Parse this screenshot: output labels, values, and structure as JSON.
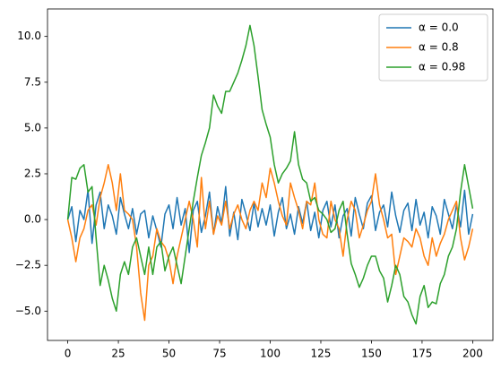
{
  "chart_data": {
    "type": "line",
    "x": [
      0,
      2,
      4,
      6,
      8,
      10,
      12,
      14,
      16,
      18,
      20,
      22,
      24,
      26,
      28,
      30,
      32,
      34,
      36,
      38,
      40,
      42,
      44,
      46,
      48,
      50,
      52,
      54,
      56,
      58,
      60,
      62,
      64,
      66,
      68,
      70,
      72,
      74,
      76,
      78,
      80,
      82,
      84,
      86,
      88,
      90,
      92,
      94,
      96,
      98,
      100,
      102,
      104,
      106,
      108,
      110,
      112,
      114,
      116,
      118,
      120,
      122,
      124,
      126,
      128,
      130,
      132,
      134,
      136,
      138,
      140,
      142,
      144,
      146,
      148,
      150,
      152,
      154,
      156,
      158,
      160,
      162,
      164,
      166,
      168,
      170,
      172,
      174,
      176,
      178,
      180,
      182,
      184,
      186,
      188,
      190,
      192,
      194,
      196,
      198,
      200
    ],
    "series": [
      {
        "name": "α = 0.0",
        "color": "#1f77b4",
        "values": [
          0,
          0.7,
          -1.2,
          0.5,
          0,
          1.6,
          -1.3,
          0.8,
          1.5,
          -0.5,
          0.8,
          0.2,
          -0.8,
          1.2,
          0.3,
          -0.5,
          0.6,
          -0.8,
          0.3,
          0.5,
          -1,
          0.2,
          -0.6,
          -1.5,
          0.3,
          0.8,
          -0.5,
          1.2,
          -0.3,
          0.6,
          -1.8,
          0.5,
          1,
          -0.7,
          0.2,
          1.5,
          -0.8,
          0.7,
          -0.2,
          1.8,
          -0.9,
          0.4,
          -1.1,
          1.1,
          0.3,
          -0.6,
          0.9,
          -0.4,
          0.6,
          -0.3,
          0.8,
          -0.9,
          0.4,
          1.2,
          -0.5,
          0.3,
          -0.8,
          0.7,
          -0.2,
          1,
          -0.6,
          0.4,
          -1,
          0.5,
          1,
          -0.4,
          0.8,
          -1,
          0.2,
          0.6,
          -0.9,
          1.2,
          0.3,
          -0.5,
          0.9,
          1.3,
          -0.6,
          0.4,
          0.8,
          -0.4,
          1.5,
          0.2,
          -0.7,
          0.5,
          0.9,
          -0.6,
          1.1,
          -0.3,
          0.4,
          -1,
          0.7,
          0.2,
          -0.8,
          1.1,
          0.3,
          -0.5,
          0.8,
          -0.4,
          1.6,
          -0.8,
          0.3
        ]
      },
      {
        "name": "α = 0.8",
        "color": "#ff7f0e",
        "values": [
          0,
          -1,
          -2.3,
          -1,
          -0.5,
          0.5,
          0.8,
          -0.3,
          1.2,
          2,
          3,
          2,
          0.5,
          2.5,
          0.5,
          0.3,
          0,
          -1.5,
          -4,
          -5.5,
          -2.5,
          -2,
          -0.5,
          -1.2,
          -1.5,
          -2.2,
          -3.5,
          -2,
          -1,
          0,
          1,
          0,
          -1.5,
          2.3,
          -0.5,
          1,
          -0.8,
          0.2,
          -0.3,
          1,
          -0.5,
          0.3,
          0.8,
          0,
          -0.5,
          0.5,
          1,
          0.5,
          2,
          1.2,
          2.8,
          2,
          1,
          0.2,
          -0.3,
          2,
          1.2,
          0.5,
          -0.5,
          1,
          0.8,
          2,
          0,
          -0.8,
          -1,
          1,
          0,
          -0.5,
          -2,
          0,
          1,
          0.5,
          -1,
          -0.3,
          0.5,
          1,
          2.5,
          0.8,
          0,
          -1,
          -0.8,
          -3,
          -2,
          -1,
          -1.2,
          -1.5,
          -0.5,
          -1,
          -2,
          -2.5,
          -1,
          -2,
          -1.3,
          -0.8,
          0,
          0.5,
          1,
          -1,
          -2.2,
          -1.5,
          -0.5
        ]
      },
      {
        "name": "α = 0.98",
        "color": "#2ca02c",
        "values": [
          0,
          2.3,
          2.2,
          2.8,
          3,
          1.5,
          1.8,
          -1,
          -3.6,
          -2.5,
          -3.3,
          -4.3,
          -5,
          -3,
          -2.3,
          -3,
          -1.5,
          -1,
          -2,
          -3,
          -1.5,
          -3,
          -1.5,
          -1.2,
          -2.8,
          -2,
          -1.5,
          -2.5,
          -3.5,
          -2,
          -0.5,
          1,
          2.3,
          3.5,
          4.2,
          5,
          6.8,
          6.2,
          5.8,
          7,
          7,
          7.5,
          8,
          8.7,
          9.5,
          10.6,
          9.5,
          7.8,
          6,
          5.2,
          4.5,
          3,
          2,
          2.5,
          2.8,
          3.2,
          4.8,
          3,
          2.2,
          2,
          1,
          1.2,
          0.5,
          0.3,
          0,
          -0.7,
          -0.5,
          0.5,
          1,
          -0.8,
          -2.4,
          -3,
          -3.7,
          -3.2,
          -2.5,
          -2,
          -2,
          -2.8,
          -3.2,
          -4.5,
          -3.6,
          -2.5,
          -3,
          -4.2,
          -4.5,
          -5.2,
          -5.7,
          -4.2,
          -3.6,
          -4.8,
          -4.5,
          -4.6,
          -3.5,
          -3,
          -2,
          -1.5,
          -0.5,
          1.5,
          3,
          1.8,
          0.6
        ]
      }
    ],
    "xlim": [
      -10,
      210
    ],
    "xticks": [
      0,
      25,
      50,
      75,
      100,
      125,
      150,
      175,
      200
    ],
    "ylim": [
      -6.6,
      11.5
    ],
    "yticks": [
      {
        "value": -5,
        "label": "−5.0"
      },
      {
        "value": -2.5,
        "label": "−2.5"
      },
      {
        "value": 0,
        "label": "0.0"
      },
      {
        "value": 2.5,
        "label": "2.5"
      },
      {
        "value": 5,
        "label": "5.0"
      },
      {
        "value": 7.5,
        "label": "7.5"
      },
      {
        "value": 10,
        "label": "10.0"
      }
    ],
    "grid": false,
    "legend_position": "upper-right"
  }
}
